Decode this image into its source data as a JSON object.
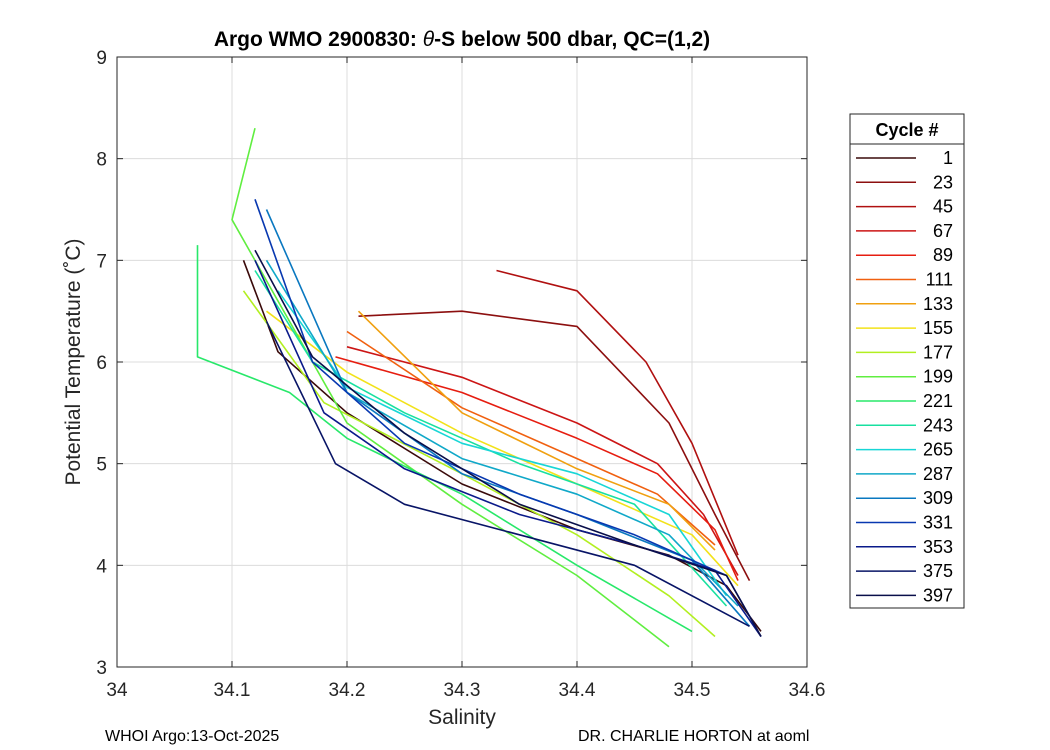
{
  "chart_data": {
    "type": "line",
    "title_prefix": "Argo WMO 2900830: ",
    "title_theta": "θ",
    "title_suffix": "-S below 500 dbar,  QC=(1,2)",
    "xlabel": "Salinity",
    "ylabel": "Potential Temperature (˚C)",
    "xlim": [
      34.0,
      34.6
    ],
    "ylim": [
      3,
      9
    ],
    "xticks": [
      34,
      34.1,
      34.2,
      34.3,
      34.4,
      34.5,
      34.6
    ],
    "xtick_labels": [
      "34",
      "34.1",
      "34.2",
      "34.3",
      "34.4",
      "34.5",
      "34.6"
    ],
    "yticks": [
      3,
      4,
      5,
      6,
      7,
      8,
      9
    ],
    "ytick_labels": [
      "3",
      "4",
      "5",
      "6",
      "7",
      "8",
      "9"
    ],
    "grid": true,
    "legend": {
      "title": "Cycle #",
      "placement": "right-outside",
      "entries": [
        {
          "label": "1",
          "color": "#3a0a0a"
        },
        {
          "label": "23",
          "color": "#8c0f0f"
        },
        {
          "label": "45",
          "color": "#b01010"
        },
        {
          "label": "67",
          "color": "#cc1515"
        },
        {
          "label": "89",
          "color": "#e61d10"
        },
        {
          "label": "111",
          "color": "#f06010"
        },
        {
          "label": "133",
          "color": "#f0a010"
        },
        {
          "label": "155",
          "color": "#f2e21a"
        },
        {
          "label": "177",
          "color": "#b2ef20"
        },
        {
          "label": "199",
          "color": "#60ee40"
        },
        {
          "label": "221",
          "color": "#28e86a"
        },
        {
          "label": "243",
          "color": "#18e0a0"
        },
        {
          "label": "265",
          "color": "#18d6d6"
        },
        {
          "label": "287",
          "color": "#10a8c8"
        },
        {
          "label": "309",
          "color": "#0a78c0"
        },
        {
          "label": "331",
          "color": "#0838b0"
        },
        {
          "label": "353",
          "color": "#0a1a8a"
        },
        {
          "label": "375",
          "color": "#081466"
        },
        {
          "label": "397",
          "color": "#0a0f4a"
        }
      ]
    },
    "series": [
      {
        "cycle": "1",
        "color": "#3a0a0a",
        "x": [
          34.11,
          34.14,
          34.2,
          34.3,
          34.4,
          34.48,
          34.53,
          34.56
        ],
        "y": [
          7.0,
          6.1,
          5.5,
          4.8,
          4.35,
          4.1,
          3.8,
          3.35
        ]
      },
      {
        "cycle": "23",
        "color": "#8c0f0f",
        "x": [
          34.21,
          34.3,
          34.4,
          34.48,
          34.52,
          34.55
        ],
        "y": [
          6.45,
          6.5,
          6.35,
          5.4,
          4.5,
          3.85
        ]
      },
      {
        "cycle": "45",
        "color": "#b01010",
        "x": [
          34.33,
          34.4,
          34.46,
          34.5,
          34.54
        ],
        "y": [
          6.9,
          6.7,
          6.0,
          5.2,
          4.1
        ]
      },
      {
        "cycle": "67",
        "color": "#cc1515",
        "x": [
          34.2,
          34.3,
          34.4,
          34.47,
          34.51,
          34.54
        ],
        "y": [
          6.15,
          5.85,
          5.4,
          5.0,
          4.5,
          3.9
        ]
      },
      {
        "cycle": "89",
        "color": "#e61d10",
        "x": [
          34.19,
          34.3,
          34.4,
          34.47,
          34.52,
          34.54
        ],
        "y": [
          6.05,
          5.7,
          5.25,
          4.9,
          4.35,
          3.85
        ]
      },
      {
        "cycle": "111",
        "color": "#f06010",
        "x": [
          34.2,
          34.3,
          34.4,
          34.47,
          34.52
        ],
        "y": [
          6.3,
          5.55,
          5.05,
          4.7,
          4.2
        ]
      },
      {
        "cycle": "133",
        "color": "#f0a010",
        "x": [
          34.21,
          34.3,
          34.4,
          34.48,
          34.52
        ],
        "y": [
          6.5,
          5.5,
          4.95,
          4.6,
          4.15
        ]
      },
      {
        "cycle": "155",
        "color": "#f2e21a",
        "x": [
          34.13,
          34.2,
          34.3,
          34.4,
          34.5,
          34.54
        ],
        "y": [
          6.5,
          5.9,
          5.3,
          4.8,
          4.3,
          3.8
        ]
      },
      {
        "cycle": "177",
        "color": "#b2ef20",
        "x": [
          34.11,
          34.18,
          34.3,
          34.4,
          34.48,
          34.52
        ],
        "y": [
          6.7,
          5.6,
          4.9,
          4.3,
          3.7,
          3.3
        ]
      },
      {
        "cycle": "199",
        "color": "#60ee40",
        "x": [
          34.12,
          34.1,
          34.2,
          34.3,
          34.4,
          34.48
        ],
        "y": [
          8.3,
          7.4,
          5.4,
          4.6,
          3.9,
          3.2
        ]
      },
      {
        "cycle": "221",
        "color": "#28e86a",
        "x": [
          34.07,
          34.07,
          34.15,
          34.2,
          34.3,
          34.4,
          34.5
        ],
        "y": [
          7.15,
          6.05,
          5.7,
          5.25,
          4.7,
          4.0,
          3.35
        ]
      },
      {
        "cycle": "243",
        "color": "#18e0a0",
        "x": [
          34.12,
          34.17,
          34.25,
          34.35,
          34.45,
          34.53
        ],
        "y": [
          6.9,
          6.0,
          5.5,
          5.0,
          4.6,
          3.6
        ]
      },
      {
        "cycle": "265",
        "color": "#18d6d6",
        "x": [
          34.14,
          34.2,
          34.3,
          34.4,
          34.48,
          34.53
        ],
        "y": [
          6.7,
          5.75,
          5.2,
          4.9,
          4.5,
          3.7
        ]
      },
      {
        "cycle": "287",
        "color": "#10a8c8",
        "x": [
          34.13,
          34.2,
          34.3,
          34.4,
          34.48,
          34.54
        ],
        "y": [
          7.0,
          5.7,
          5.05,
          4.7,
          4.3,
          3.6
        ]
      },
      {
        "cycle": "309",
        "color": "#0a78c0",
        "x": [
          34.13,
          34.2,
          34.3,
          34.4,
          34.5,
          34.55
        ],
        "y": [
          7.5,
          5.7,
          4.9,
          4.5,
          4.05,
          3.4
        ]
      },
      {
        "cycle": "331",
        "color": "#0838b0",
        "x": [
          34.12,
          34.17,
          34.25,
          34.35,
          34.45,
          34.53,
          34.56
        ],
        "y": [
          7.6,
          6.0,
          5.2,
          4.7,
          4.3,
          3.9,
          3.3
        ]
      },
      {
        "cycle": "353",
        "color": "#0a1a8a",
        "x": [
          34.12,
          34.18,
          34.25,
          34.35,
          34.45,
          34.52,
          34.56
        ],
        "y": [
          7.0,
          5.5,
          4.95,
          4.5,
          4.2,
          3.95,
          3.3
        ]
      },
      {
        "cycle": "375",
        "color": "#081466",
        "x": [
          34.13,
          34.19,
          34.25,
          34.35,
          34.45,
          34.55
        ],
        "y": [
          6.4,
          5.0,
          4.6,
          4.3,
          4.0,
          3.4
        ]
      },
      {
        "cycle": "397",
        "color": "#0a0f4a",
        "x": [
          34.12,
          34.17,
          34.25,
          34.35,
          34.45,
          34.53,
          34.56
        ],
        "y": [
          7.1,
          6.05,
          5.3,
          4.6,
          4.2,
          3.9,
          3.3
        ]
      }
    ]
  },
  "footer": {
    "left": "WHOI Argo:13-Oct-2025",
    "right": "DR. CHARLIE HORTON at aoml"
  }
}
